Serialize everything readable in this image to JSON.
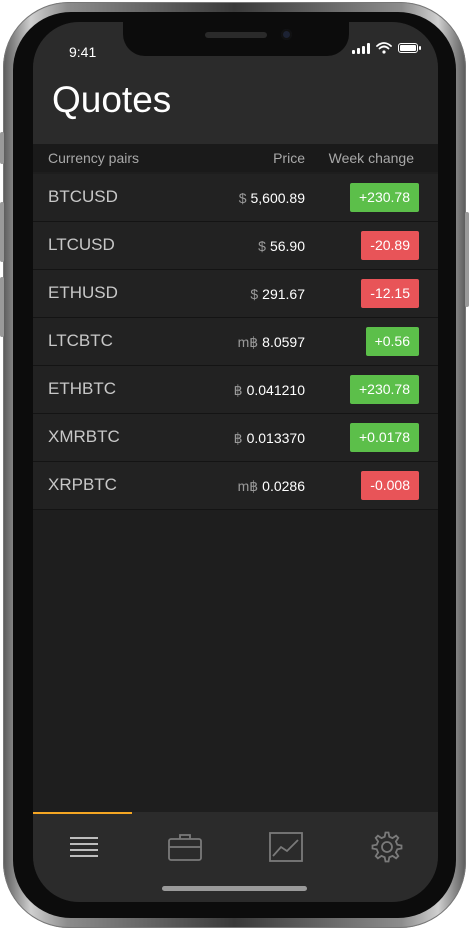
{
  "status_bar": {
    "time": "9:41"
  },
  "header": {
    "title": "Quotes"
  },
  "columns": {
    "pair": "Currency pairs",
    "price": "Price",
    "change": "Week change"
  },
  "quotes": [
    {
      "pair": "BTCUSD",
      "symbol": "$",
      "price": "5,600.89",
      "change": "+230.78",
      "direction": "up"
    },
    {
      "pair": "LTCUSD",
      "symbol": "$",
      "price": "56.90",
      "change": "-20.89",
      "direction": "down"
    },
    {
      "pair": "ETHUSD",
      "symbol": "$",
      "price": "291.67",
      "change": "-12.15",
      "direction": "down"
    },
    {
      "pair": "LTCBTC",
      "symbol": "m฿",
      "price": "8.0597",
      "change": "+0.56",
      "direction": "up"
    },
    {
      "pair": "ETHBTC",
      "symbol": "฿",
      "price": "0.041210",
      "change": "+230.78",
      "direction": "up"
    },
    {
      "pair": "XMRBTC",
      "symbol": "฿",
      "price": "0.013370",
      "change": "+0.0178",
      "direction": "up"
    },
    {
      "pair": "XRPBTC",
      "symbol": "m฿",
      "price": "0.0286",
      "change": "-0.008",
      "direction": "down"
    }
  ],
  "tabs": [
    {
      "icon": "list-icon",
      "active": true
    },
    {
      "icon": "briefcase-icon",
      "active": false
    },
    {
      "icon": "chart-icon",
      "active": false
    },
    {
      "icon": "gear-icon",
      "active": false
    }
  ],
  "colors": {
    "accent": "#f5a623",
    "up": "#5cbf4a",
    "down": "#e85458"
  }
}
